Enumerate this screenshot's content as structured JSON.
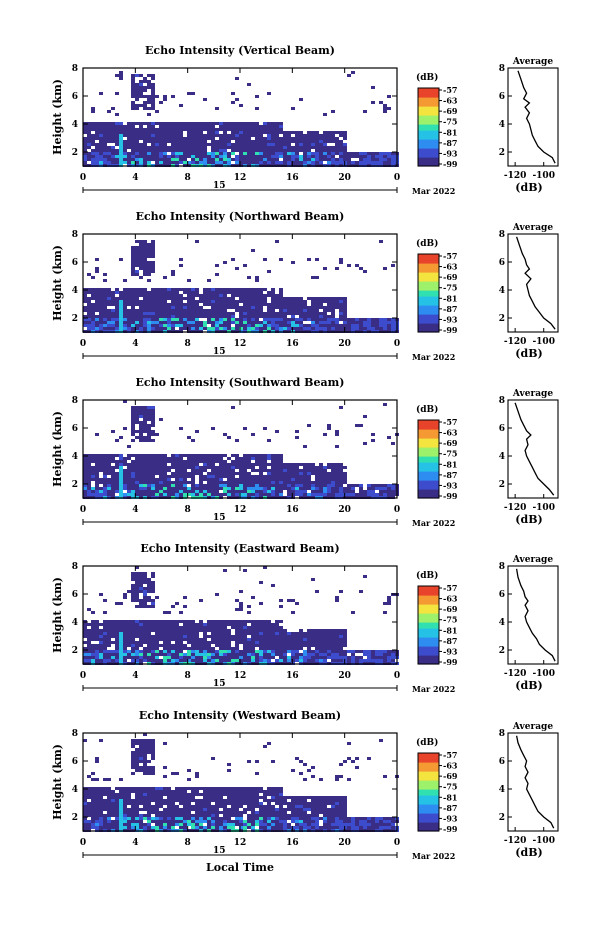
{
  "figure": {
    "xlabel": "Local Time",
    "colorbar_unit": "(dB)",
    "colorbar_labels": [
      "-57",
      "-63",
      "-69",
      "-75",
      "-81",
      "-87",
      "-93",
      "-99"
    ],
    "colorscale": [
      "#3a2d86",
      "#3c4ccd",
      "#2e8df1",
      "#25c2e6",
      "#30e0b0",
      "#9df16b",
      "#f4e43f",
      "#f59a33",
      "#e8432b"
    ],
    "date_label": "15",
    "month_label": "Mar 2022",
    "avg_title": "Average",
    "avg_xlabel": "(dB)"
  },
  "chart_data": [
    {
      "type": "heatmap",
      "title": "Echo Intensity (Vertical Beam)",
      "ylabel": "Height (km)",
      "xlabel": "",
      "x_ticks": [
        "0",
        "4",
        "8",
        "12",
        "16",
        "20",
        "0"
      ],
      "xlim": [
        0,
        24
      ],
      "y_ticks": [
        "2",
        "4",
        "6",
        "8"
      ],
      "ylim": [
        1,
        8
      ],
      "colorbar_range": [
        -99,
        -57
      ],
      "date": "15",
      "month": "Mar 2022",
      "profile": {
        "title": "Average",
        "xlabel": "(dB)",
        "x_ticks": [
          "-120",
          "-100"
        ],
        "xlim": [
          -125,
          -90
        ],
        "y_ticks": [
          "2",
          "4",
          "6",
          "8"
        ],
        "ylim": [
          1,
          8
        ],
        "values": [
          [
            -92,
            1.2
          ],
          [
            -94,
            1.6
          ],
          [
            -100,
            2.0
          ],
          [
            -104,
            2.4
          ],
          [
            -106,
            2.8
          ],
          [
            -108,
            3.2
          ],
          [
            -109,
            3.6
          ],
          [
            -110,
            4.0
          ],
          [
            -112,
            4.4
          ],
          [
            -110,
            4.8
          ],
          [
            -113,
            5.2
          ],
          [
            -110,
            5.5
          ],
          [
            -114,
            5.8
          ],
          [
            -112,
            6.2
          ],
          [
            -114,
            6.6
          ],
          [
            -116,
            7.2
          ],
          [
            -118,
            7.8
          ]
        ]
      }
    },
    {
      "type": "heatmap",
      "title": "Echo Intensity (Northward Beam)",
      "ylabel": "Height (km)",
      "xlabel": "",
      "x_ticks": [
        "0",
        "4",
        "8",
        "12",
        "16",
        "20",
        "0"
      ],
      "xlim": [
        0,
        24
      ],
      "y_ticks": [
        "2",
        "4",
        "6",
        "8"
      ],
      "ylim": [
        1,
        8
      ],
      "colorbar_range": [
        -99,
        -57
      ],
      "date": "15",
      "month": "Mar 2022",
      "profile": {
        "title": "Average",
        "xlabel": "(dB)",
        "x_ticks": [
          "-120",
          "-100"
        ],
        "xlim": [
          -125,
          -90
        ],
        "y_ticks": [
          "2",
          "4",
          "6",
          "8"
        ],
        "ylim": [
          1,
          8
        ],
        "values": [
          [
            -92,
            1.2
          ],
          [
            -95,
            1.6
          ],
          [
            -100,
            2.0
          ],
          [
            -103,
            2.4
          ],
          [
            -106,
            2.8
          ],
          [
            -108,
            3.2
          ],
          [
            -110,
            3.6
          ],
          [
            -111,
            4.0
          ],
          [
            -112,
            4.4
          ],
          [
            -109,
            4.8
          ],
          [
            -113,
            5.2
          ],
          [
            -110,
            5.5
          ],
          [
            -112,
            5.8
          ],
          [
            -113,
            6.2
          ],
          [
            -115,
            6.6
          ],
          [
            -117,
            7.2
          ],
          [
            -119,
            7.8
          ]
        ]
      }
    },
    {
      "type": "heatmap",
      "title": "Echo Intensity (Southward Beam)",
      "ylabel": "Height (km)",
      "xlabel": "",
      "x_ticks": [
        "0",
        "4",
        "8",
        "12",
        "16",
        "20",
        "0"
      ],
      "xlim": [
        0,
        24
      ],
      "y_ticks": [
        "2",
        "4",
        "6",
        "8"
      ],
      "ylim": [
        1,
        8
      ],
      "colorbar_range": [
        -99,
        -57
      ],
      "date": "15",
      "month": "Mar 2022",
      "profile": {
        "title": "Average",
        "xlabel": "(dB)",
        "x_ticks": [
          "-120",
          "-100"
        ],
        "xlim": [
          -125,
          -90
        ],
        "y_ticks": [
          "2",
          "4",
          "6",
          "8"
        ],
        "ylim": [
          1,
          8
        ],
        "values": [
          [
            -93,
            1.2
          ],
          [
            -96,
            1.6
          ],
          [
            -100,
            2.0
          ],
          [
            -104,
            2.4
          ],
          [
            -106,
            2.8
          ],
          [
            -108,
            3.2
          ],
          [
            -110,
            3.6
          ],
          [
            -112,
            4.0
          ],
          [
            -113,
            4.4
          ],
          [
            -111,
            4.8
          ],
          [
            -112,
            5.2
          ],
          [
            -109,
            5.5
          ],
          [
            -112,
            5.8
          ],
          [
            -114,
            6.2
          ],
          [
            -116,
            6.6
          ],
          [
            -118,
            7.2
          ],
          [
            -120,
            7.8
          ]
        ]
      }
    },
    {
      "type": "heatmap",
      "title": "Echo Intensity (Eastward Beam)",
      "ylabel": "Height (km)",
      "xlabel": "",
      "x_ticks": [
        "0",
        "4",
        "8",
        "12",
        "16",
        "20",
        "0"
      ],
      "xlim": [
        0,
        24
      ],
      "y_ticks": [
        "2",
        "4",
        "6",
        "8"
      ],
      "ylim": [
        1,
        8
      ],
      "colorbar_range": [
        -99,
        -57
      ],
      "date": "15",
      "month": "Mar 2022",
      "profile": {
        "title": "Average",
        "xlabel": "(dB)",
        "x_ticks": [
          "-120",
          "-100"
        ],
        "xlim": [
          -125,
          -90
        ],
        "y_ticks": [
          "2",
          "4",
          "6",
          "8"
        ],
        "ylim": [
          1,
          8
        ],
        "values": [
          [
            -92,
            1.2
          ],
          [
            -94,
            1.6
          ],
          [
            -99,
            2.0
          ],
          [
            -103,
            2.4
          ],
          [
            -105,
            2.8
          ],
          [
            -108,
            3.2
          ],
          [
            -110,
            3.6
          ],
          [
            -112,
            4.0
          ],
          [
            -113,
            4.4
          ],
          [
            -111,
            4.8
          ],
          [
            -113,
            5.2
          ],
          [
            -111,
            5.5
          ],
          [
            -113,
            5.8
          ],
          [
            -114,
            6.2
          ],
          [
            -116,
            6.6
          ],
          [
            -118,
            7.2
          ],
          [
            -119,
            7.8
          ]
        ]
      }
    },
    {
      "type": "heatmap",
      "title": "Echo Intensity (Westward Beam)",
      "ylabel": "Height (km)",
      "xlabel": "Local Time",
      "x_ticks": [
        "0",
        "4",
        "8",
        "12",
        "16",
        "20",
        "0"
      ],
      "xlim": [
        0,
        24
      ],
      "y_ticks": [
        "2",
        "4",
        "6",
        "8"
      ],
      "ylim": [
        1,
        8
      ],
      "colorbar_range": [
        -99,
        -57
      ],
      "date": "15",
      "month": "Mar 2022",
      "profile": {
        "title": "Average",
        "xlabel": "(dB)",
        "x_ticks": [
          "-120",
          "-100"
        ],
        "xlim": [
          -125,
          -90
        ],
        "y_ticks": [
          "2",
          "4",
          "6",
          "8"
        ],
        "ylim": [
          1,
          8
        ],
        "values": [
          [
            -93,
            1.2
          ],
          [
            -95,
            1.6
          ],
          [
            -100,
            2.0
          ],
          [
            -104,
            2.4
          ],
          [
            -106,
            2.8
          ],
          [
            -108,
            3.2
          ],
          [
            -110,
            3.6
          ],
          [
            -112,
            4.0
          ],
          [
            -111,
            4.4
          ],
          [
            -113,
            4.8
          ],
          [
            -111,
            5.2
          ],
          [
            -113,
            5.6
          ],
          [
            -112,
            6.0
          ],
          [
            -114,
            6.4
          ],
          [
            -116,
            6.8
          ],
          [
            -118,
            7.3
          ],
          [
            -119,
            7.8
          ]
        ]
      }
    }
  ]
}
